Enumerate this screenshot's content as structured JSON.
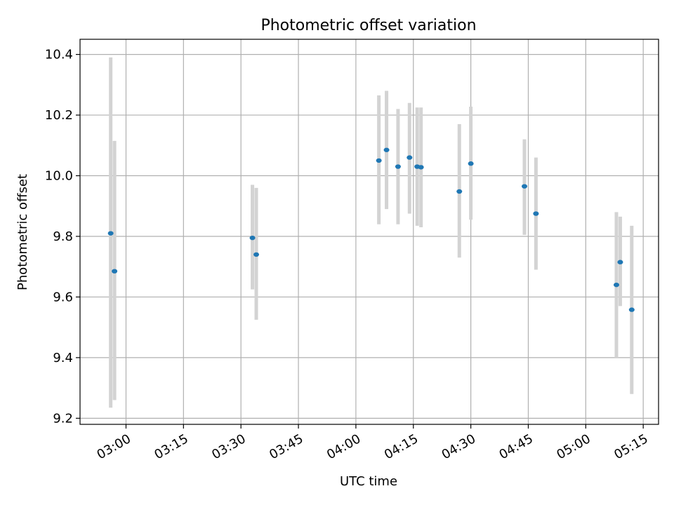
{
  "chart_data": {
    "type": "scatter",
    "title": "Photometric offset variation",
    "xlabel": "UTC time",
    "ylabel": "Photometric offset",
    "x_ticks": [
      "03:00",
      "03:15",
      "03:30",
      "03:45",
      "04:00",
      "04:15",
      "04:30",
      "04:45",
      "05:00",
      "05:15"
    ],
    "y_ticks": [
      "9.2",
      "9.4",
      "9.6",
      "9.8",
      "10.0",
      "10.2",
      "10.4"
    ],
    "xlim": [
      "02:48",
      "05:19"
    ],
    "ylim": [
      9.18,
      10.45
    ],
    "grid": true,
    "colors": {
      "point": "#1f77b4",
      "errorbar": "#d3d3d3",
      "grid": "#b0b0b0"
    },
    "points": [
      {
        "x": "02:56",
        "y": 9.81,
        "ylow": 9.235,
        "yhigh": 10.39
      },
      {
        "x": "02:57",
        "y": 9.685,
        "ylow": 9.26,
        "yhigh": 10.115
      },
      {
        "x": "03:33",
        "y": 9.795,
        "ylow": 9.625,
        "yhigh": 9.97
      },
      {
        "x": "03:34",
        "y": 9.74,
        "ylow": 9.525,
        "yhigh": 9.96
      },
      {
        "x": "04:06",
        "y": 10.05,
        "ylow": 9.84,
        "yhigh": 10.265
      },
      {
        "x": "04:08",
        "y": 10.085,
        "ylow": 9.89,
        "yhigh": 10.28
      },
      {
        "x": "04:11",
        "y": 10.03,
        "ylow": 9.84,
        "yhigh": 10.22
      },
      {
        "x": "04:14",
        "y": 10.06,
        "ylow": 9.875,
        "yhigh": 10.24
      },
      {
        "x": "04:16",
        "y": 10.03,
        "ylow": 9.835,
        "yhigh": 10.225
      },
      {
        "x": "04:17",
        "y": 10.028,
        "ylow": 9.83,
        "yhigh": 10.225
      },
      {
        "x": "04:27",
        "y": 9.948,
        "ylow": 9.73,
        "yhigh": 10.17
      },
      {
        "x": "04:30",
        "y": 10.04,
        "ylow": 9.855,
        "yhigh": 10.228
      },
      {
        "x": "04:44",
        "y": 9.965,
        "ylow": 9.805,
        "yhigh": 10.12
      },
      {
        "x": "04:47",
        "y": 9.875,
        "ylow": 9.69,
        "yhigh": 10.06
      },
      {
        "x": "05:08",
        "y": 9.64,
        "ylow": 9.4,
        "yhigh": 9.88
      },
      {
        "x": "05:09",
        "y": 9.715,
        "ylow": 9.57,
        "yhigh": 9.865
      },
      {
        "x": "05:12",
        "y": 9.558,
        "ylow": 9.28,
        "yhigh": 9.835
      }
    ]
  }
}
